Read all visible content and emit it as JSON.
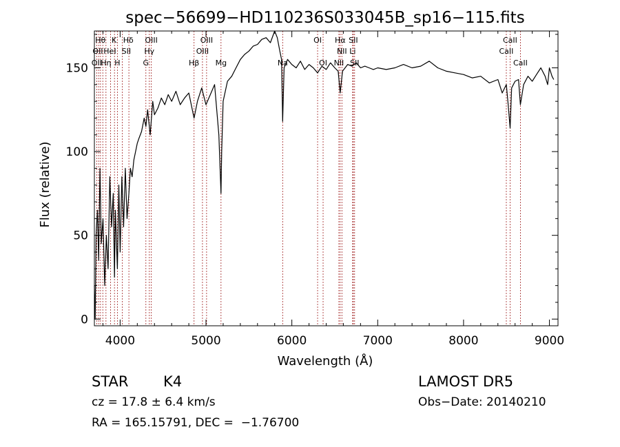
{
  "chart_data": {
    "type": "line",
    "title": "spec−56699−HD110236S033045B_sp16−115.fits",
    "xlabel": "Wavelength (Å)",
    "ylabel": "Flux (relative)",
    "xlim": [
      3700,
      9100
    ],
    "ylim": [
      -4,
      172
    ],
    "xticks": [
      4000,
      5000,
      6000,
      7000,
      8000,
      9000
    ],
    "yticks": [
      0,
      50,
      100,
      150
    ],
    "grid": false,
    "series": [
      {
        "x": [
          3700,
          3710,
          3720,
          3735,
          3750,
          3765,
          3780,
          3800,
          3820,
          3840,
          3860,
          3880,
          3900,
          3920,
          3934,
          3945,
          3968,
          3985,
          4000,
          4020,
          4040,
          4060,
          4080,
          4102,
          4120,
          4140,
          4160,
          4180,
          4200,
          4220,
          4250,
          4280,
          4300,
          4320,
          4350,
          4380,
          4400,
          4440,
          4480,
          4520,
          4560,
          4600,
          4650,
          4700,
          4750,
          4800,
          4861,
          4900,
          4950,
          5000,
          5050,
          5100,
          5150,
          5175,
          5183,
          5200,
          5250,
          5300,
          5350,
          5400,
          5450,
          5500,
          5550,
          5600,
          5650,
          5700,
          5750,
          5800,
          5830,
          5860,
          5880,
          5893,
          5910,
          5950,
          6000,
          6050,
          6100,
          6150,
          6200,
          6250,
          6300,
          6350,
          6400,
          6450,
          6500,
          6540,
          6563,
          6590,
          6650,
          6700,
          6750,
          6800,
          6850,
          6900,
          6950,
          7000,
          7100,
          7200,
          7300,
          7400,
          7500,
          7600,
          7700,
          7800,
          7900,
          8000,
          8100,
          8200,
          8300,
          8400,
          8450,
          8498,
          8520,
          8542,
          8560,
          8600,
          8640,
          8662,
          8700,
          8750,
          8800,
          8850,
          8900,
          8950,
          8980,
          9000,
          9030,
          9050
        ],
        "values": [
          20,
          0,
          50,
          65,
          35,
          90,
          45,
          60,
          20,
          50,
          30,
          85,
          55,
          75,
          25,
          65,
          30,
          80,
          40,
          85,
          55,
          90,
          60,
          75,
          90,
          85,
          95,
          100,
          105,
          108,
          112,
          120,
          115,
          125,
          110,
          130,
          122,
          126,
          132,
          128,
          134,
          130,
          136,
          128,
          132,
          135,
          120,
          130,
          138,
          128,
          134,
          140,
          110,
          75,
          100,
          130,
          142,
          145,
          150,
          155,
          158,
          160,
          163,
          164,
          167,
          168,
          165,
          172,
          168,
          160,
          155,
          118,
          150,
          155,
          152,
          150,
          154,
          149,
          152,
          150,
          147,
          151,
          149,
          153,
          150,
          148,
          135,
          148,
          152,
          151,
          153,
          150,
          151,
          150,
          149,
          150,
          149,
          150,
          152,
          150,
          151,
          154,
          150,
          148,
          147,
          146,
          144,
          145,
          141,
          143,
          135,
          140,
          128,
          114,
          138,
          142,
          143,
          128,
          140,
          145,
          142,
          146,
          150,
          145,
          140,
          150,
          145,
          143
        ]
      }
    ],
    "lines": {
      "wavelengths": [
        3727,
        3750,
        3771,
        3798,
        3835,
        3889,
        3934,
        3968,
        4026,
        4102,
        4300,
        4340,
        4363,
        4861,
        4959,
        5007,
        5175,
        5893,
        6300,
        6364,
        6548,
        6563,
        6583,
        6708,
        6716,
        6731,
        8498,
        8542,
        8662
      ]
    },
    "annotations": [
      {
        "text": "Hθ",
        "x": 3770,
        "row": 0
      },
      {
        "text": "K",
        "x": 3930,
        "row": 0
      },
      {
        "text": "Hδ",
        "x": 4095,
        "row": 0
      },
      {
        "text": "OIII",
        "x": 4363,
        "row": 0
      },
      {
        "text": "OIII",
        "x": 5007,
        "row": 0
      },
      {
        "text": "OI",
        "x": 6300,
        "row": 0
      },
      {
        "text": "Hα",
        "x": 6563,
        "row": 0
      },
      {
        "text": "SII",
        "x": 6716,
        "row": 0
      },
      {
        "text": "CaII",
        "x": 8542,
        "row": 0
      },
      {
        "text": "OII",
        "x": 3740,
        "row": 1
      },
      {
        "text": "HeI",
        "x": 3880,
        "row": 1
      },
      {
        "text": "SII",
        "x": 4072,
        "row": 1
      },
      {
        "text": "Hγ",
        "x": 4340,
        "row": 1
      },
      {
        "text": "OIII",
        "x": 4959,
        "row": 1
      },
      {
        "text": "NII",
        "x": 6583,
        "row": 1
      },
      {
        "text": "Li",
        "x": 6708,
        "row": 1
      },
      {
        "text": "CaII",
        "x": 8498,
        "row": 1
      },
      {
        "text": "OII",
        "x": 3727,
        "row": 2
      },
      {
        "text": "Hη",
        "x": 3835,
        "row": 2
      },
      {
        "text": "H",
        "x": 3968,
        "row": 2
      },
      {
        "text": "G",
        "x": 4300,
        "row": 2
      },
      {
        "text": "Hβ",
        "x": 4861,
        "row": 2
      },
      {
        "text": "Mg",
        "x": 5175,
        "row": 2
      },
      {
        "text": "Na",
        "x": 5893,
        "row": 2
      },
      {
        "text": "OI",
        "x": 6364,
        "row": 2
      },
      {
        "text": "NII",
        "x": 6548,
        "row": 2
      },
      {
        "text": "SII",
        "x": 6731,
        "row": 2
      },
      {
        "text": "CaII",
        "x": 8662,
        "row": 2
      }
    ]
  },
  "info": {
    "class": "STAR",
    "subclass": "K4",
    "survey": "LAMOST DR5",
    "cz": "cz = 17.8 ± 6.4 km/s",
    "obs_date": "Obs−Date: 20140210",
    "coords": "RA = 165.15791, DEC =  −1.76700"
  }
}
